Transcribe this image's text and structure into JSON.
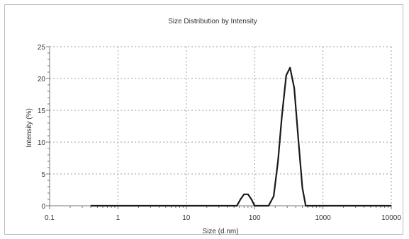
{
  "chart_data": {
    "type": "line",
    "title": "Size Distribution by Intensity",
    "xlabel": "Size (d.nm)",
    "ylabel": "Intensity (%)",
    "xscale": "log",
    "xlim": [
      0.1,
      10000
    ],
    "ylim": [
      0,
      25
    ],
    "x_ticks": [
      0.1,
      1,
      10,
      100,
      1000,
      10000
    ],
    "x_tick_labels": [
      "0.1",
      "1",
      "10",
      "100",
      "1000",
      "10000"
    ],
    "y_ticks": [
      0,
      5,
      10,
      15,
      20,
      25
    ],
    "y_tick_labels": [
      "0",
      "5",
      "10",
      "15",
      "20",
      "25"
    ],
    "grid": true,
    "legend": "none",
    "line_color": "#1a1a1a",
    "series": [
      {
        "x": [
          0.4,
          1,
          10,
          40,
          55,
          62,
          70,
          80,
          90,
          100,
          110,
          160,
          190,
          220,
          250,
          290,
          330,
          380,
          440,
          500,
          560,
          620,
          800,
          1000,
          10000
        ],
        "values": [
          0,
          0,
          0,
          0,
          0,
          1.0,
          1.8,
          1.8,
          1.0,
          0,
          0,
          0,
          1.5,
          7.0,
          14.0,
          20.5,
          21.7,
          18.5,
          10.0,
          2.8,
          0,
          0,
          0,
          0,
          0
        ]
      }
    ]
  }
}
